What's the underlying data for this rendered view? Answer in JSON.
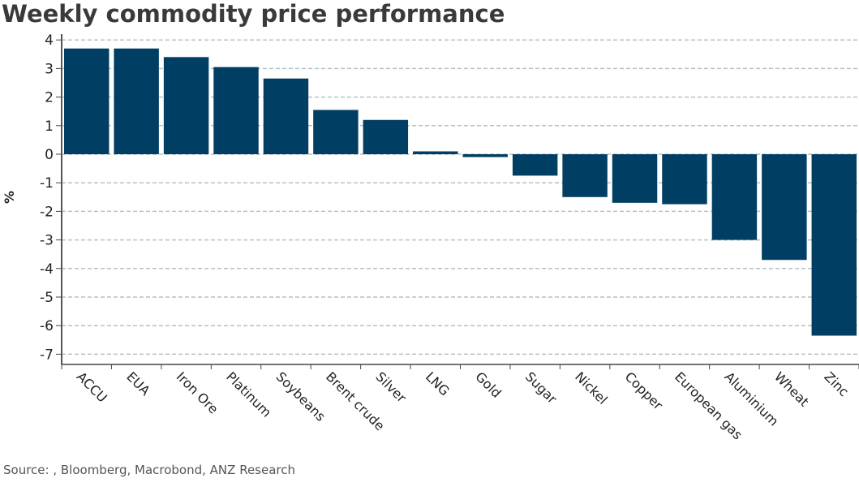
{
  "chart_data": {
    "type": "bar",
    "title": "Weekly commodity price performance",
    "xlabel": "",
    "ylabel": "%",
    "ylim": [
      -7.3,
      4.2
    ],
    "yticks": [
      4,
      3,
      2,
      1,
      0,
      -1,
      -2,
      -3,
      -4,
      -5,
      -6,
      -7
    ],
    "grid": true,
    "legend": "none",
    "bar_color": "#003F63",
    "categories": [
      "ACCU",
      "EUA",
      "Iron Ore",
      "Platinum",
      "Soybeans",
      "Brent crude",
      "Silver",
      "LNG",
      "Gold",
      "Sugar",
      "Nickel",
      "Copper",
      "European gas",
      "Aluminium",
      "Wheat",
      "Zinc"
    ],
    "values": [
      3.7,
      3.7,
      3.4,
      3.05,
      2.65,
      1.55,
      1.2,
      0.1,
      -0.1,
      -0.75,
      -1.5,
      -1.7,
      -1.75,
      -3.0,
      -3.7,
      -6.35
    ]
  },
  "source": "Source: , Bloomberg, Macrobond, ANZ Research"
}
